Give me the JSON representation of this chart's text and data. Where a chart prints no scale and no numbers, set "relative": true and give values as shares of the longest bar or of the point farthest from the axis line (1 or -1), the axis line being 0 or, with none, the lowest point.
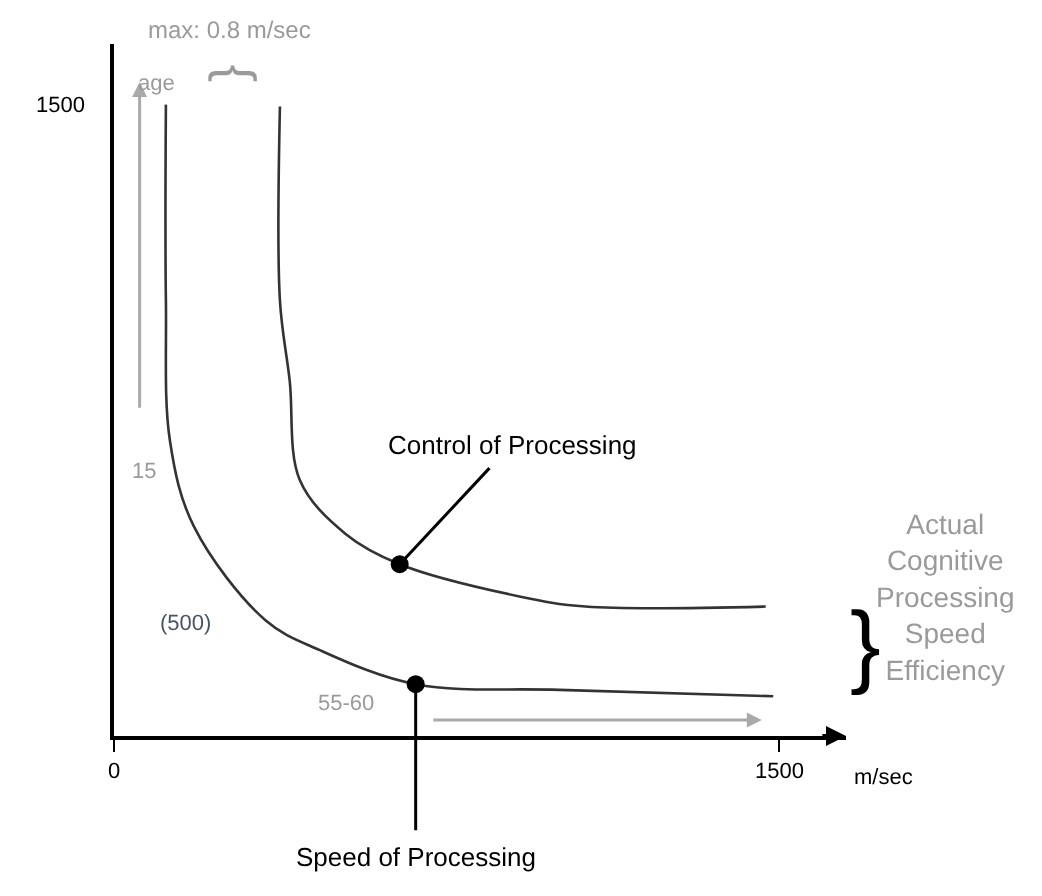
{
  "chart_data": {
    "type": "line",
    "relative": true,
    "xlabel": "m/sec",
    "xlim": [
      0,
      1650
    ],
    "xticks": [
      0,
      1500
    ],
    "marker": "none",
    "line_style": "solid",
    "series": [
      {
        "color": "#333333",
        "x": [
          117,
          117,
          126,
          180,
          342,
          464,
          680,
          1004,
          1486
        ],
        "values": [
          1,
          0.69,
          0.468,
          0.332,
          0.183,
          0.136,
          0.082,
          0.073,
          0.063
        ]
      },
      {
        "color": "#333333",
        "x": [
          374,
          374,
          396,
          419,
          522,
          644,
          914,
          1063,
          1469
        ],
        "values": [
          0.997,
          0.69,
          0.563,
          0.405,
          0.32,
          0.272,
          0.221,
          0.205,
          0.205
        ]
      },
      {
        "type": "scatter",
        "marker": "circle",
        "color": "#000000",
        "x": [
          644,
          680
        ],
        "values": [
          0.272,
          0.082
        ]
      }
    ],
    "annotations": [
      "max: 0.8 m/sec",
      "age",
      "}",
      "15",
      "(500)",
      "55-60",
      {
        "text": "Control of Processing",
        "x": 644,
        "y": 0.272
      },
      {
        "text": "Speed of Processing",
        "x": 680,
        "y": 0.082
      },
      "}",
      "Actual\nCognitive\nProcessing\nSpeed\nEfficiency",
      "1500"
    ]
  }
}
